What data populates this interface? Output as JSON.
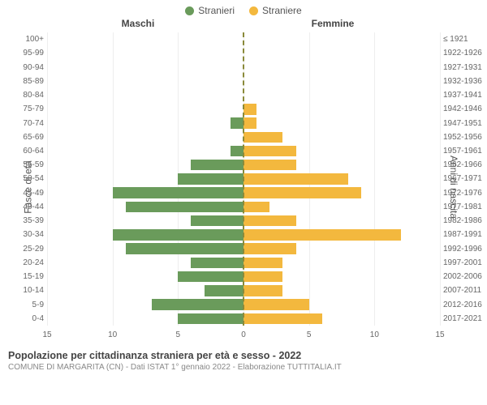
{
  "chart": {
    "type": "population-pyramid",
    "legend": [
      {
        "label": "Stranieri",
        "color": "#6a9b5b"
      },
      {
        "label": "Straniere",
        "color": "#f3b83e"
      }
    ],
    "header_left": "Maschi",
    "header_right": "Femmine",
    "yaxis_left_title": "Fasce di età",
    "yaxis_right_title": "Anni di nascita",
    "xmax": 15,
    "xticks_left": [
      15,
      10,
      5,
      0
    ],
    "xticks_right": [
      0,
      5,
      10,
      15
    ],
    "grid_color": "#eeeeee",
    "centerline_color": "#8a8a3a",
    "male_color": "#6a9b5b",
    "female_color": "#f3b83e",
    "background_color": "#ffffff",
    "rows": [
      {
        "age": "100+",
        "birth": "≤ 1921",
        "m": 0,
        "f": 0
      },
      {
        "age": "95-99",
        "birth": "1922-1926",
        "m": 0,
        "f": 0
      },
      {
        "age": "90-94",
        "birth": "1927-1931",
        "m": 0,
        "f": 0
      },
      {
        "age": "85-89",
        "birth": "1932-1936",
        "m": 0,
        "f": 0
      },
      {
        "age": "80-84",
        "birth": "1937-1941",
        "m": 0,
        "f": 0
      },
      {
        "age": "75-79",
        "birth": "1942-1946",
        "m": 0,
        "f": 1
      },
      {
        "age": "70-74",
        "birth": "1947-1951",
        "m": 1,
        "f": 1
      },
      {
        "age": "65-69",
        "birth": "1952-1956",
        "m": 0,
        "f": 3
      },
      {
        "age": "60-64",
        "birth": "1957-1961",
        "m": 1,
        "f": 4
      },
      {
        "age": "55-59",
        "birth": "1962-1966",
        "m": 4,
        "f": 4
      },
      {
        "age": "50-54",
        "birth": "1967-1971",
        "m": 5,
        "f": 8
      },
      {
        "age": "45-49",
        "birth": "1972-1976",
        "m": 10,
        "f": 9
      },
      {
        "age": "40-44",
        "birth": "1977-1981",
        "m": 9,
        "f": 2
      },
      {
        "age": "35-39",
        "birth": "1982-1986",
        "m": 4,
        "f": 4
      },
      {
        "age": "30-34",
        "birth": "1987-1991",
        "m": 10,
        "f": 12
      },
      {
        "age": "25-29",
        "birth": "1992-1996",
        "m": 9,
        "f": 4
      },
      {
        "age": "20-24",
        "birth": "1997-2001",
        "m": 4,
        "f": 3
      },
      {
        "age": "15-19",
        "birth": "2002-2006",
        "m": 5,
        "f": 3
      },
      {
        "age": "10-14",
        "birth": "2007-2011",
        "m": 3,
        "f": 3
      },
      {
        "age": "5-9",
        "birth": "2012-2016",
        "m": 7,
        "f": 5
      },
      {
        "age": "0-4",
        "birth": "2017-2021",
        "m": 5,
        "f": 6
      }
    ]
  },
  "footer": {
    "title": "Popolazione per cittadinanza straniera per età e sesso - 2022",
    "subtitle": "COMUNE DI MARGARITA (CN) - Dati ISTAT 1° gennaio 2022 - Elaborazione TUTTITALIA.IT"
  }
}
